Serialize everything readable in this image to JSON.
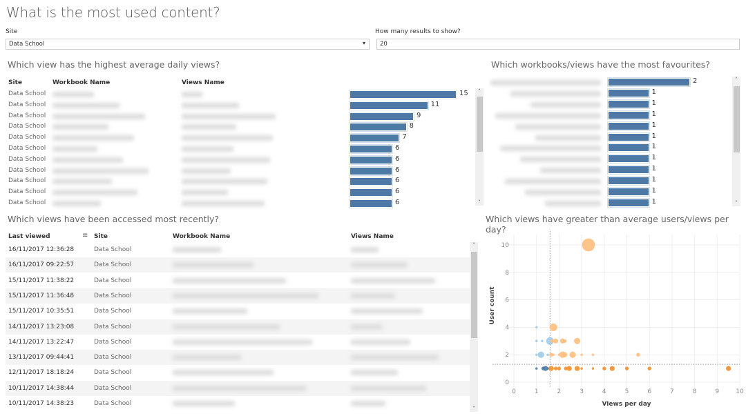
{
  "title": "What is the most used content?",
  "filters": {
    "site_label": "Site",
    "site_value": "Data School",
    "results_label": "How many results to show?",
    "results_value": "20"
  },
  "daily_views": {
    "title": "Which view has the highest average daily views?",
    "headers": [
      "Site",
      "Workbook Name",
      "Views Name"
    ],
    "rows": [
      {
        "site": "Data School",
        "value": 15
      },
      {
        "site": "Data School",
        "value": 11
      },
      {
        "site": "Data School",
        "value": 9
      },
      {
        "site": "Data School",
        "value": 8
      },
      {
        "site": "Data School",
        "value": 7
      },
      {
        "site": "Data School",
        "value": 6
      },
      {
        "site": "Data School",
        "value": 6
      },
      {
        "site": "Data School",
        "value": 6
      },
      {
        "site": "Data School",
        "value": 6
      },
      {
        "site": "Data School",
        "value": 6
      },
      {
        "site": "Data School",
        "value": 6
      }
    ],
    "bar_color": "#4e79a7"
  },
  "favourites": {
    "title": "Which workbooks/views have the most favourites?",
    "values": [
      2,
      1,
      1,
      1,
      1,
      1,
      1,
      1,
      1,
      1,
      1,
      1
    ]
  },
  "recent": {
    "title": "Which views have been accessed most recently?",
    "headers": {
      "last_viewed": "Last viewed",
      "site": "Site",
      "workbook": "Workbook Name",
      "view": "Views Name"
    },
    "sort_icon": "sort-descending-icon",
    "rows": [
      {
        "last_viewed": "16/11/2017 12:36:28",
        "site": "Data School"
      },
      {
        "last_viewed": "16/11/2017 09:22:57",
        "site": "Data School"
      },
      {
        "last_viewed": "15/11/2017 11:38:22",
        "site": "Data School"
      },
      {
        "last_viewed": "15/11/2017 11:36:48",
        "site": "Data School"
      },
      {
        "last_viewed": "15/11/2017 10:35:51",
        "site": "Data School"
      },
      {
        "last_viewed": "14/11/2017 13:23:08",
        "site": "Data School"
      },
      {
        "last_viewed": "14/11/2017 13:22:47",
        "site": "Data School"
      },
      {
        "last_viewed": "13/11/2017 09:44:41",
        "site": "Data School"
      },
      {
        "last_viewed": "12/11/2017 18:18:24",
        "site": "Data School"
      },
      {
        "last_viewed": "10/11/2017 14:38:44",
        "site": "Data School"
      },
      {
        "last_viewed": "10/11/2017 14:38:23",
        "site": "Data School"
      }
    ]
  },
  "chart_data": {
    "type": "scatter",
    "title": "Which views have greater than average users/views per day?",
    "xlabel": "Views per day",
    "ylabel": "User count",
    "xlim": [
      0,
      10
    ],
    "ylim": [
      0,
      11
    ],
    "xticks": [
      "0",
      "1",
      "2",
      "3",
      "4",
      "5",
      "6",
      "7",
      "8",
      "9",
      "10"
    ],
    "yticks": [
      "0",
      "2",
      "4",
      "6",
      "8",
      "10"
    ],
    "grid": true,
    "reference_lines": {
      "x": 1.6,
      "y": 1.3
    },
    "colors": {
      "low": "#4e79a7",
      "low_light": "#a0cbe8",
      "high": "#f28e2b",
      "high_light": "#ffbe7d"
    },
    "points": [
      {
        "x": 3.3,
        "y": 10,
        "size": 9,
        "c": "high_light"
      },
      {
        "x": 1.75,
        "y": 4,
        "size": 5,
        "c": "high_light"
      },
      {
        "x": 1.0,
        "y": 4,
        "size": 1,
        "c": "low_light"
      },
      {
        "x": 1.0,
        "y": 3,
        "size": 1,
        "c": "low_light"
      },
      {
        "x": 1.25,
        "y": 3,
        "size": 1,
        "c": "low_light"
      },
      {
        "x": 1.6,
        "y": 3,
        "size": 5,
        "c": "low_light"
      },
      {
        "x": 1.7,
        "y": 3,
        "size": 2,
        "c": "high_light"
      },
      {
        "x": 1.85,
        "y": 3,
        "size": 3,
        "c": "high_light"
      },
      {
        "x": 2.15,
        "y": 3,
        "size": 3,
        "c": "high_light"
      },
      {
        "x": 2.25,
        "y": 3,
        "size": 2,
        "c": "high_light"
      },
      {
        "x": 2.8,
        "y": 3,
        "size": 4,
        "c": "high_light"
      },
      {
        "x": 1.0,
        "y": 2,
        "size": 1,
        "c": "low_light"
      },
      {
        "x": 1.2,
        "y": 2,
        "size": 4,
        "c": "low_light"
      },
      {
        "x": 1.5,
        "y": 2,
        "size": 1,
        "c": "low_light"
      },
      {
        "x": 1.65,
        "y": 2,
        "size": 2,
        "c": "high_light"
      },
      {
        "x": 1.75,
        "y": 2,
        "size": 1,
        "c": "high_light"
      },
      {
        "x": 2.0,
        "y": 2,
        "size": 1,
        "c": "high_light"
      },
      {
        "x": 2.15,
        "y": 2,
        "size": 4,
        "c": "high_light"
      },
      {
        "x": 2.25,
        "y": 2,
        "size": 3,
        "c": "high_light"
      },
      {
        "x": 2.6,
        "y": 2,
        "size": 4,
        "c": "high_light"
      },
      {
        "x": 3.0,
        "y": 2,
        "size": 1,
        "c": "high_light"
      },
      {
        "x": 3.5,
        "y": 2,
        "size": 1,
        "c": "high_light"
      },
      {
        "x": 5.5,
        "y": 2,
        "size": 2,
        "c": "high_light"
      },
      {
        "x": 1.0,
        "y": 1,
        "size": 1,
        "c": "low"
      },
      {
        "x": 1.3,
        "y": 1,
        "size": 2,
        "c": "low"
      },
      {
        "x": 1.4,
        "y": 1,
        "size": 3,
        "c": "low"
      },
      {
        "x": 1.5,
        "y": 1,
        "size": 1,
        "c": "low"
      },
      {
        "x": 1.65,
        "y": 1,
        "size": 3,
        "c": "high"
      },
      {
        "x": 1.85,
        "y": 1,
        "size": 2,
        "c": "high"
      },
      {
        "x": 2.0,
        "y": 1,
        "size": 2,
        "c": "high"
      },
      {
        "x": 2.3,
        "y": 1,
        "size": 2,
        "c": "high"
      },
      {
        "x": 2.45,
        "y": 1,
        "size": 3,
        "c": "high"
      },
      {
        "x": 2.8,
        "y": 1,
        "size": 3,
        "c": "high"
      },
      {
        "x": 3.0,
        "y": 1,
        "size": 1,
        "c": "high"
      },
      {
        "x": 3.5,
        "y": 1,
        "size": 1,
        "c": "high"
      },
      {
        "x": 4.0,
        "y": 1,
        "size": 2,
        "c": "high"
      },
      {
        "x": 4.35,
        "y": 1,
        "size": 3,
        "c": "high"
      },
      {
        "x": 5.0,
        "y": 1,
        "size": 2,
        "c": "high"
      },
      {
        "x": 6.0,
        "y": 1,
        "size": 2,
        "c": "high"
      },
      {
        "x": 9.5,
        "y": 1,
        "size": 3,
        "c": "high"
      }
    ]
  }
}
